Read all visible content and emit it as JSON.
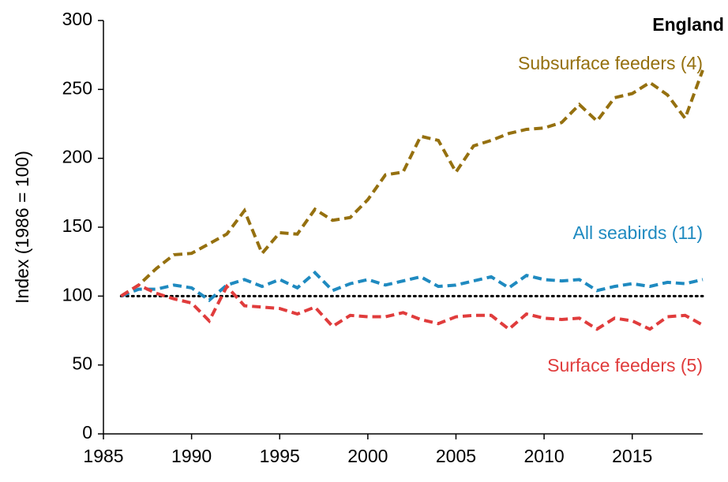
{
  "chart_data": {
    "type": "line",
    "title": "England",
    "y_label": "Index (1986 = 100)",
    "x": [
      1986,
      1987,
      1988,
      1989,
      1990,
      1991,
      1992,
      1993,
      1994,
      1995,
      1996,
      1997,
      1998,
      1999,
      2000,
      2001,
      2002,
      2003,
      2004,
      2005,
      2006,
      2007,
      2008,
      2009,
      2010,
      2011,
      2012,
      2013,
      2014,
      2015,
      2016,
      2017,
      2018,
      2019
    ],
    "series": [
      {
        "name": "Subsurface feeders (4)",
        "color": "#95700f",
        "values": [
          100,
          108,
          120,
          130,
          131,
          138,
          145,
          162,
          131,
          146,
          145,
          163,
          155,
          157,
          170,
          188,
          190,
          216,
          213,
          190,
          209,
          213,
          218,
          221,
          222,
          226,
          239,
          227,
          244,
          247,
          255,
          246,
          229,
          264
        ]
      },
      {
        "name": "All seabirds (11)",
        "color": "#1f8ac0",
        "values": [
          100,
          105,
          105,
          108,
          106,
          97,
          108,
          112,
          107,
          112,
          106,
          117,
          104,
          109,
          112,
          108,
          111,
          114,
          107,
          108,
          111,
          114,
          106,
          115,
          112,
          111,
          112,
          104,
          107,
          109,
          107,
          110,
          109,
          112
        ]
      },
      {
        "name": "Surface feeders (5)",
        "color": "#e03c3c",
        "values": [
          100,
          108,
          102,
          98,
          95,
          82,
          107,
          93,
          92,
          91,
          87,
          92,
          78,
          86,
          85,
          85,
          88,
          83,
          80,
          85,
          86,
          86,
          76,
          87,
          84,
          83,
          84,
          76,
          84,
          82,
          76,
          85,
          86,
          79
        ]
      }
    ],
    "reference_line": 100,
    "xlim": [
      1985,
      2019
    ],
    "xticks": [
      1985,
      1990,
      1995,
      2000,
      2005,
      2010,
      2015
    ],
    "ylim": [
      0,
      300
    ],
    "yticks": [
      0,
      50,
      100,
      150,
      200,
      250,
      300
    ]
  }
}
